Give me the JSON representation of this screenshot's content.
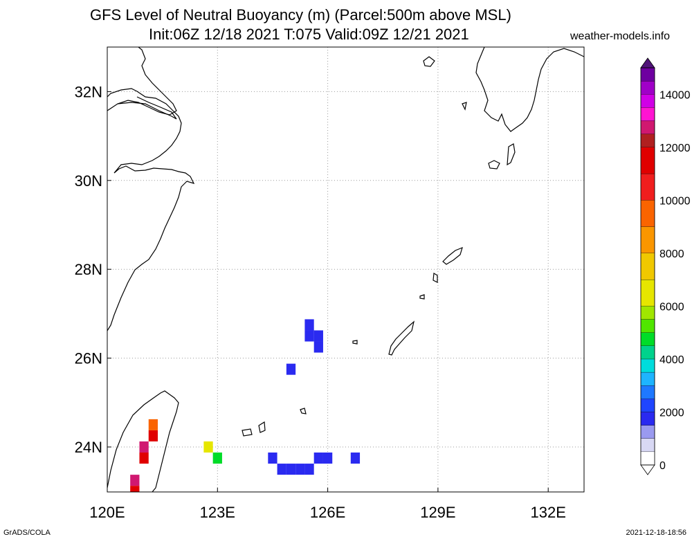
{
  "title": {
    "line1": "GFS Level of Neutral Buoyancy (m) (Parcel:500m above MSL)",
    "line2": "Init:06Z 12/18 2021 T:075 Valid:09Z 12/21 2021"
  },
  "site": "weather-models.info",
  "footer": {
    "left": "GrADS/COLA",
    "right": "2021-12-18-18:56"
  },
  "map": {
    "lon_range": [
      120,
      133
    ],
    "lat_range": [
      23,
      33
    ],
    "lon_ticks": [
      {
        "value": 120,
        "label": "120E"
      },
      {
        "value": 123,
        "label": "123E"
      },
      {
        "value": 126,
        "label": "126E"
      },
      {
        "value": 129,
        "label": "129E"
      },
      {
        "value": 132,
        "label": "132E"
      }
    ],
    "lat_ticks": [
      {
        "value": 32,
        "label": "32N"
      },
      {
        "value": 30,
        "label": "30N"
      },
      {
        "value": 28,
        "label": "28N"
      },
      {
        "value": 26,
        "label": "26N"
      },
      {
        "value": 24,
        "label": "24N"
      }
    ],
    "grid": true
  },
  "colorbar": {
    "range": [
      0,
      15000
    ],
    "labels": [
      {
        "value": 14000,
        "label": "14000"
      },
      {
        "value": 12000,
        "label": "12000"
      },
      {
        "value": 10000,
        "label": "10000"
      },
      {
        "value": 8000,
        "label": "8000"
      },
      {
        "value": 6000,
        "label": "6000"
      },
      {
        "value": 4000,
        "label": "4000"
      },
      {
        "value": 2000,
        "label": "2000"
      },
      {
        "value": 0,
        "label": "0"
      }
    ]
  },
  "chart_data": {
    "type": "heatmap",
    "cells": [
      {
        "lon": 125.5,
        "lat": 26.75,
        "value": 1500
      },
      {
        "lon": 125.5,
        "lat": 26.5,
        "value": 1500
      },
      {
        "lon": 125.75,
        "lat": 26.5,
        "value": 1500
      },
      {
        "lon": 125.75,
        "lat": 26.25,
        "value": 1500
      },
      {
        "lon": 125.0,
        "lat": 25.75,
        "value": 1500
      },
      {
        "lon": 121.25,
        "lat": 24.5,
        "value": 9000
      },
      {
        "lon": 121.25,
        "lat": 24.25,
        "value": 11000
      },
      {
        "lon": 121.0,
        "lat": 24.0,
        "value": 12500
      },
      {
        "lon": 121.0,
        "lat": 23.75,
        "value": 11500
      },
      {
        "lon": 120.75,
        "lat": 23.25,
        "value": 12500
      },
      {
        "lon": 120.75,
        "lat": 23.0,
        "value": 11000
      },
      {
        "lon": 122.75,
        "lat": 24.0,
        "value": 6500
      },
      {
        "lon": 123.0,
        "lat": 23.75,
        "value": 4500
      },
      {
        "lon": 124.5,
        "lat": 23.75,
        "value": 1500
      },
      {
        "lon": 124.75,
        "lat": 23.5,
        "value": 1500
      },
      {
        "lon": 125.0,
        "lat": 23.5,
        "value": 1500
      },
      {
        "lon": 125.25,
        "lat": 23.5,
        "value": 1500
      },
      {
        "lon": 125.5,
        "lat": 23.5,
        "value": 1500
      },
      {
        "lon": 125.75,
        "lat": 23.75,
        "value": 1500
      },
      {
        "lon": 126.0,
        "lat": 23.75,
        "value": 1500
      },
      {
        "lon": 126.75,
        "lat": 23.75,
        "value": 1500
      }
    ]
  }
}
